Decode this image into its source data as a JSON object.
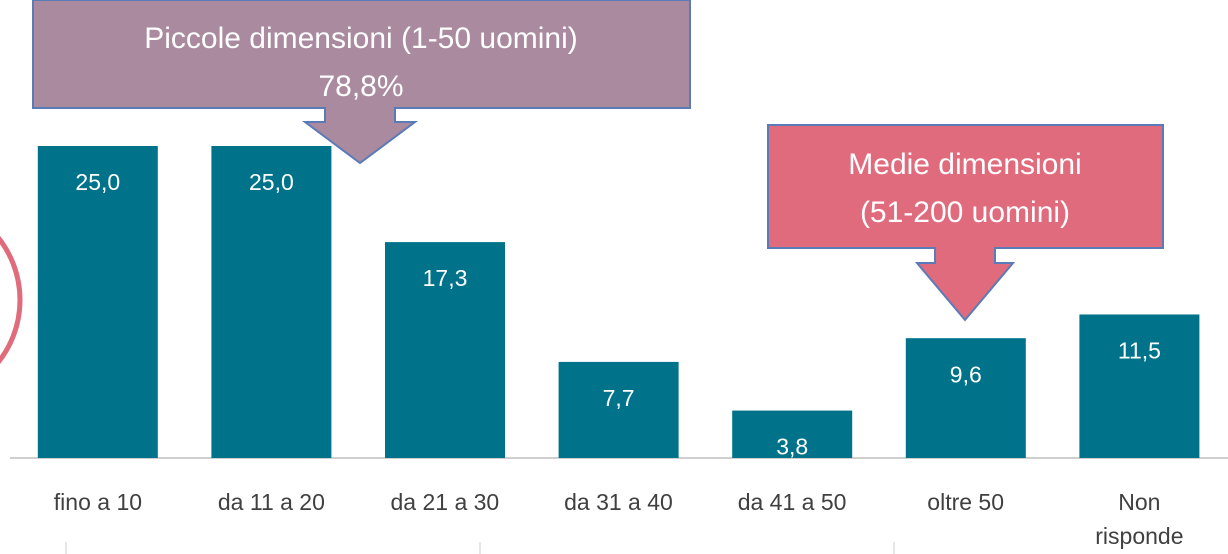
{
  "chart_data": {
    "type": "bar",
    "categories": [
      "fino a 10",
      "da 11 a 20",
      "da 21 a 30",
      "da 31 a 40",
      "da 41 a 50",
      "oltre 50",
      "Non risponde"
    ],
    "values": [
      25.0,
      25.0,
      17.3,
      7.7,
      3.8,
      9.6,
      11.5
    ],
    "value_labels": [
      "25,0",
      "25,0",
      "17,3",
      "7,7",
      "3,8",
      "9,6",
      "11,5"
    ],
    "color": "#00728a",
    "ylim": [
      0,
      25
    ],
    "annotations": [
      "Piccole dimensioni (1-50 uomini)",
      "78,8%",
      "Medie dimensioni",
      "(51-200 uomini)"
    ]
  }
}
